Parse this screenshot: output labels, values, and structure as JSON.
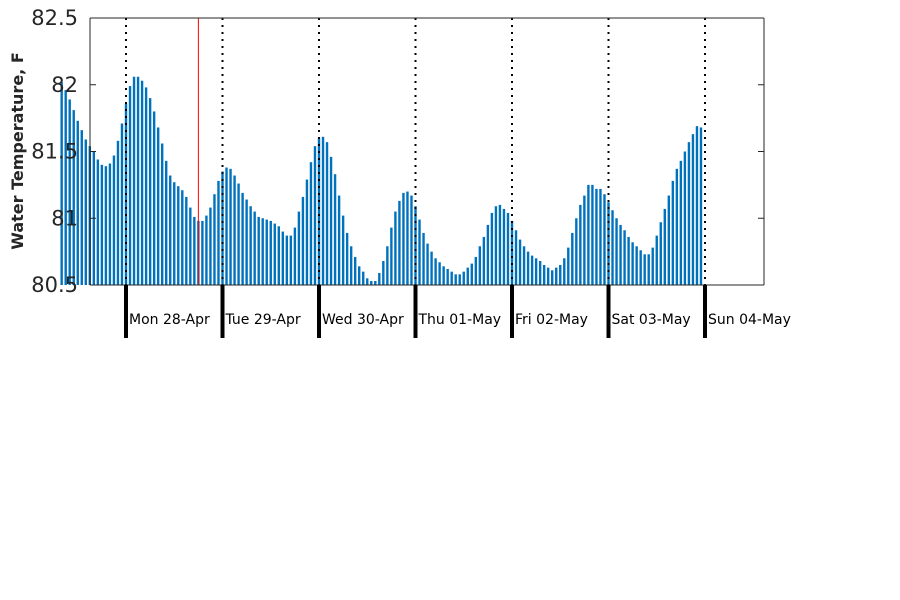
{
  "chart_data": {
    "type": "bar",
    "ylabel": "Water Temperature, F",
    "ylim": [
      80.5,
      82.5
    ],
    "yticks": [
      "82.5",
      "82",
      "81.5",
      "81",
      "80.5"
    ],
    "ytick_values": [
      82.5,
      82,
      81.5,
      81,
      80.5
    ],
    "x_start": "Sun 27-Apr 08:00",
    "x_step_hours": 1,
    "day_labels": [
      "Mon 28-Apr",
      "Tue 29-Apr",
      "Wed 30-Apr",
      "Thu 01-May",
      "Fri 02-May",
      "Sat 03-May",
      "Sun 04-May"
    ],
    "current_time_marker": "Mon 28-Apr 18:00",
    "bar_color": "#0072bd",
    "marker_color": "#ff0000",
    "values": [
      82.02,
      81.96,
      81.89,
      81.81,
      81.73,
      81.66,
      81.59,
      81.54,
      81.5,
      81.44,
      81.4,
      81.39,
      81.41,
      81.47,
      81.58,
      81.71,
      81.86,
      81.99,
      82.06,
      82.06,
      82.03,
      81.98,
      81.9,
      81.8,
      81.68,
      81.56,
      81.43,
      81.32,
      81.27,
      81.24,
      81.21,
      81.16,
      81.08,
      81.01,
      80.98,
      80.98,
      81.02,
      81.08,
      81.18,
      81.28,
      81.35,
      81.38,
      81.37,
      81.32,
      81.26,
      81.19,
      81.14,
      81.09,
      81.05,
      81.01,
      81.0,
      80.99,
      80.98,
      80.96,
      80.94,
      80.9,
      80.87,
      80.87,
      80.93,
      81.05,
      81.16,
      81.29,
      81.42,
      81.54,
      81.6,
      81.61,
      81.57,
      81.46,
      81.33,
      81.17,
      81.02,
      80.89,
      80.79,
      80.71,
      80.64,
      80.6,
      80.55,
      80.53,
      80.53,
      80.59,
      80.68,
      80.79,
      80.93,
      81.05,
      81.13,
      81.19,
      81.2,
      81.17,
      81.09,
      80.99,
      80.89,
      80.81,
      80.75,
      80.7,
      80.67,
      80.64,
      80.62,
      80.6,
      80.58,
      80.58,
      80.6,
      80.63,
      80.66,
      80.71,
      80.79,
      80.86,
      80.95,
      81.04,
      81.09,
      81.1,
      81.07,
      81.04,
      80.98,
      80.91,
      80.84,
      80.79,
      80.75,
      80.72,
      80.7,
      80.68,
      80.65,
      80.63,
      80.61,
      80.63,
      80.65,
      80.7,
      80.78,
      80.89,
      81.0,
      81.1,
      81.17,
      81.25,
      81.25,
      81.22,
      81.22,
      81.18,
      81.12,
      81.06,
      81.0,
      80.95,
      80.91,
      80.86,
      80.82,
      80.79,
      80.76,
      80.73,
      80.73,
      80.78,
      80.87,
      80.97,
      81.07,
      81.17,
      81.28,
      81.37,
      81.43,
      81.5,
      81.57,
      81.63,
      81.69,
      81.68
    ]
  }
}
